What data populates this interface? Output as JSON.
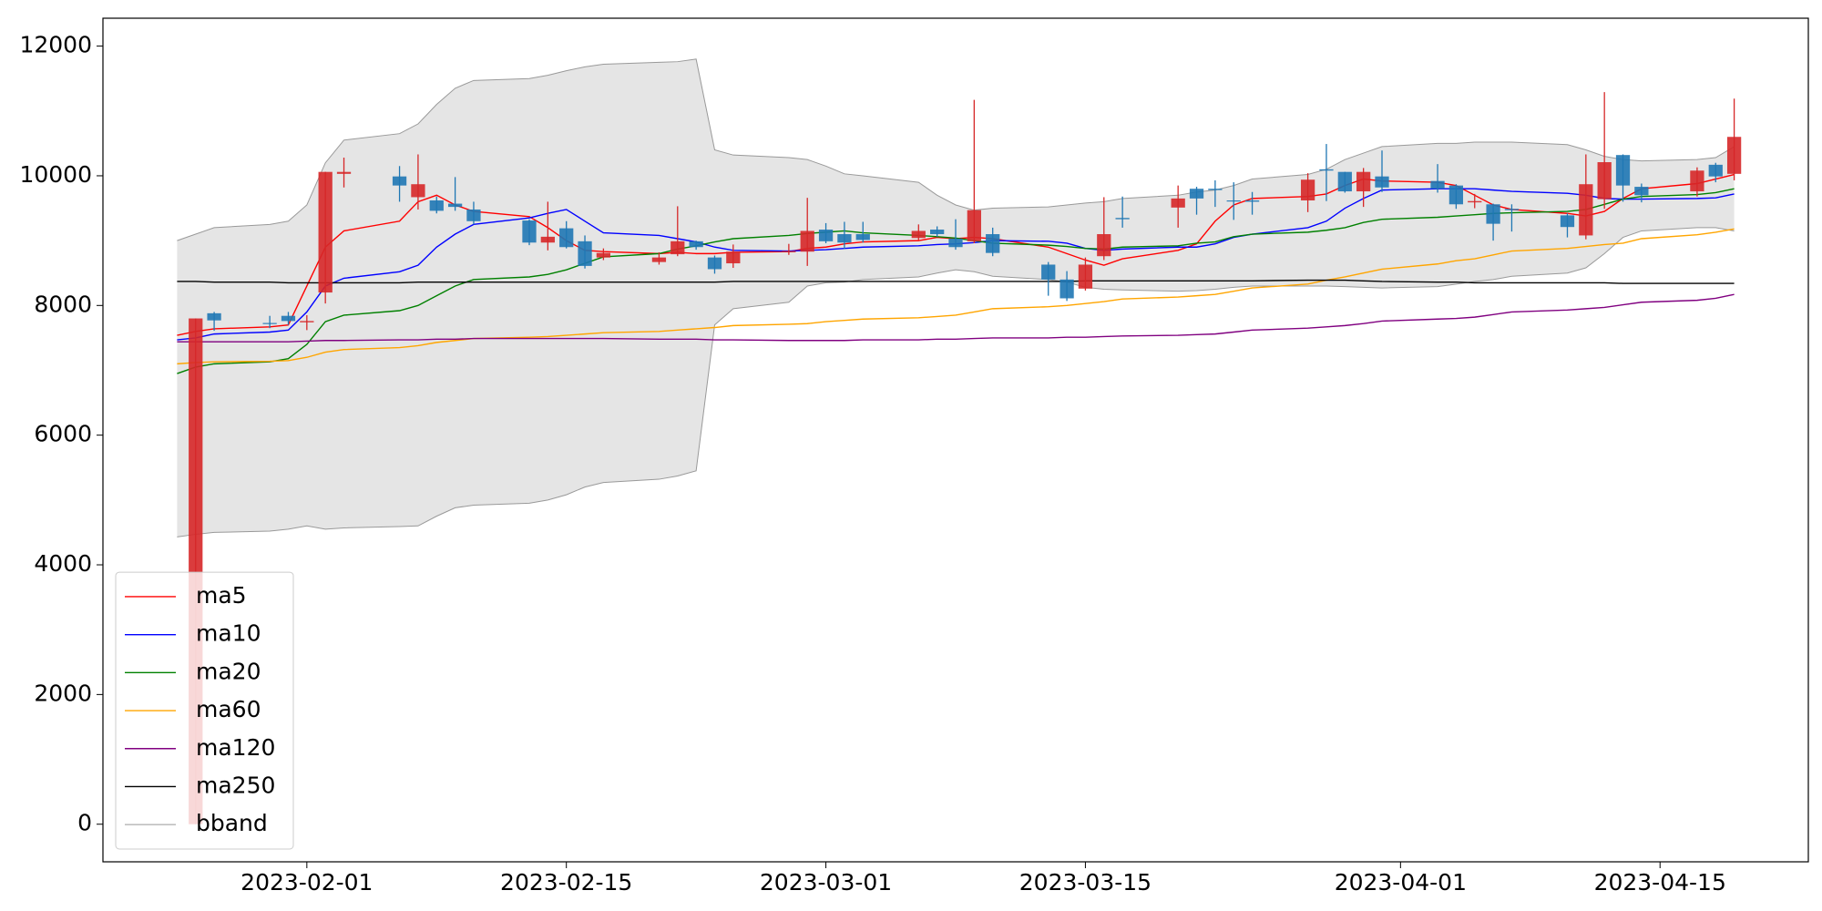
{
  "chart_data": {
    "type": "candlestick",
    "x": [
      "2023-01-25",
      "2023-01-26",
      "2023-01-27",
      "2023-01-30",
      "2023-01-31",
      "2023-02-01",
      "2023-02-02",
      "2023-02-03",
      "2023-02-06",
      "2023-02-07",
      "2023-02-08",
      "2023-02-09",
      "2023-02-10",
      "2023-02-13",
      "2023-02-14",
      "2023-02-15",
      "2023-02-16",
      "2023-02-17",
      "2023-02-20",
      "2023-02-21",
      "2023-02-22",
      "2023-02-23",
      "2023-02-24",
      "2023-02-27",
      "2023-02-28",
      "2023-03-01",
      "2023-03-02",
      "2023-03-03",
      "2023-03-06",
      "2023-03-07",
      "2023-03-08",
      "2023-03-09",
      "2023-03-10",
      "2023-03-13",
      "2023-03-14",
      "2023-03-15",
      "2023-03-16",
      "2023-03-17",
      "2023-03-20",
      "2023-03-21",
      "2023-03-22",
      "2023-03-23",
      "2023-03-24",
      "2023-03-27",
      "2023-03-28",
      "2023-03-29",
      "2023-03-30",
      "2023-03-31",
      "2023-04-03",
      "2023-04-04",
      "2023-04-05",
      "2023-04-06",
      "2023-04-07",
      "2023-04-10",
      "2023-04-11",
      "2023-04-12",
      "2023-04-13",
      "2023-04-14",
      "2023-04-17",
      "2023-04-18",
      "2023-04-19"
    ],
    "open": [
      null,
      0,
      7880,
      7730,
      7840,
      7740,
      8200,
      10030,
      9990,
      9670,
      9620,
      9570,
      9480,
      9310,
      8970,
      9190,
      8990,
      8740,
      8670,
      8790,
      8990,
      8740,
      8650,
      8820,
      8830,
      9170,
      9100,
      9100,
      9040,
      9170,
      9030,
      8990,
      9100,
      8630,
      8400,
      8260,
      8760,
      9350,
      9510,
      9800,
      9800,
      9620,
      9620,
      9620,
      10100,
      10060,
      9760,
      9990,
      9920,
      9850,
      9590,
      9560,
      9490,
      9390,
      9080,
      9640,
      10320,
      9830,
      9760,
      10170,
      10030
    ],
    "high": [
      null,
      7800,
      7900,
      7840,
      7900,
      7850,
      10060,
      10280,
      10150,
      10330,
      9680,
      9980,
      9600,
      9330,
      9600,
      9300,
      9080,
      8880,
      8820,
      9530,
      9000,
      8770,
      8940,
      8950,
      9660,
      9270,
      9290,
      9290,
      9250,
      9220,
      9330,
      11170,
      9200,
      8670,
      8530,
      8740,
      9670,
      9680,
      9850,
      9830,
      9930,
      9900,
      9750,
      10040,
      10490,
      10060,
      10120,
      10390,
      10180,
      9870,
      9720,
      9570,
      9560,
      9420,
      10330,
      11290,
      10330,
      9880,
      10130,
      10200,
      11190
    ],
    "low": [
      null,
      0,
      7610,
      7650,
      7700,
      7620,
      8030,
      9820,
      9600,
      9480,
      9420,
      9460,
      9250,
      8930,
      8850,
      8880,
      8570,
      8700,
      8630,
      8760,
      8860,
      8490,
      8580,
      8780,
      8610,
      8960,
      8870,
      8970,
      9010,
      9060,
      8860,
      8960,
      8760,
      8150,
      8070,
      8230,
      8700,
      9200,
      9200,
      9400,
      9520,
      9320,
      9400,
      9440,
      9610,
      9740,
      9520,
      9750,
      9740,
      9490,
      9500,
      9000,
      9140,
      9050,
      9020,
      9490,
      9600,
      9590,
      9680,
      9900,
      9930
    ],
    "close": [
      null,
      7800,
      7770,
      7720,
      7760,
      7760,
      10060,
      10060,
      9850,
      9870,
      9460,
      9520,
      9300,
      8970,
      9060,
      8900,
      8610,
      8810,
      8740,
      8990,
      8900,
      8560,
      8830,
      8840,
      9150,
      8990,
      8970,
      9010,
      9150,
      9100,
      8900,
      9470,
      8810,
      8400,
      8110,
      8630,
      9100,
      9330,
      9650,
      9650,
      9780,
      9610,
      9600,
      9940,
      10080,
      9760,
      10060,
      9820,
      9800,
      9560,
      9610,
      9260,
      9470,
      9210,
      9870,
      10210,
      9850,
      9700,
      10080,
      9990,
      10600
    ],
    "up_color": "#d62728",
    "down_color": "#1f77b4",
    "series": [
      {
        "name": "ma5",
        "color": "#ff0000",
        "values": [
          7540,
          7600,
          7640,
          7670,
          7700,
          8300,
          8900,
          9150,
          9300,
          9600,
          9700,
          9550,
          9450,
          9370,
          9200,
          9000,
          8850,
          8830,
          8800,
          8820,
          8800,
          8800,
          8820,
          8830,
          8880,
          8900,
          8950,
          8980,
          9000,
          9050,
          9030,
          9050,
          9030,
          8900,
          8800,
          8700,
          8620,
          8720,
          8850,
          8950,
          9300,
          9550,
          9650,
          9680,
          9720,
          9850,
          9950,
          9920,
          9900,
          9850,
          9700,
          9550,
          9480,
          9420,
          9380,
          9450,
          9650,
          9800,
          9880,
          9950,
          10020
        ]
      },
      {
        "name": "ma10",
        "color": "#0000ff",
        "values": [
          7470,
          7500,
          7560,
          7590,
          7620,
          7900,
          8300,
          8420,
          8520,
          8620,
          8900,
          9100,
          9250,
          9350,
          9420,
          9480,
          9300,
          9120,
          9080,
          9030,
          8980,
          8900,
          8850,
          8840,
          8850,
          8860,
          8880,
          8900,
          8920,
          8940,
          8950,
          8970,
          9000,
          8990,
          8960,
          8880,
          8850,
          8870,
          8900,
          8900,
          8950,
          9050,
          9100,
          9200,
          9300,
          9500,
          9650,
          9780,
          9800,
          9800,
          9800,
          9780,
          9760,
          9730,
          9700,
          9650,
          9640,
          9640,
          9650,
          9660,
          9720
        ]
      },
      {
        "name": "ma20",
        "color": "#008000",
        "values": [
          6950,
          7050,
          7100,
          7130,
          7180,
          7400,
          7750,
          7850,
          7920,
          8000,
          8150,
          8300,
          8400,
          8440,
          8480,
          8550,
          8650,
          8750,
          8800,
          8870,
          8920,
          8980,
          9030,
          9080,
          9110,
          9130,
          9150,
          9120,
          9080,
          9060,
          9040,
          9000,
          8960,
          8930,
          8910,
          8880,
          8870,
          8900,
          8920,
          8960,
          8980,
          9060,
          9100,
          9130,
          9160,
          9200,
          9280,
          9330,
          9360,
          9380,
          9400,
          9420,
          9430,
          9450,
          9480,
          9560,
          9640,
          9680,
          9710,
          9740,
          9800
        ]
      },
      {
        "name": "ma60",
        "color": "#ffa500",
        "values": [
          7100,
          7120,
          7130,
          7140,
          7150,
          7200,
          7280,
          7320,
          7350,
          7380,
          7430,
          7460,
          7490,
          7510,
          7520,
          7540,
          7560,
          7580,
          7600,
          7620,
          7640,
          7660,
          7690,
          7710,
          7720,
          7750,
          7770,
          7790,
          7810,
          7830,
          7850,
          7900,
          7950,
          7980,
          8000,
          8030,
          8060,
          8100,
          8130,
          8150,
          8170,
          8220,
          8270,
          8330,
          8390,
          8440,
          8500,
          8560,
          8640,
          8690,
          8720,
          8780,
          8840,
          8880,
          8910,
          8940,
          8960,
          9030,
          9090,
          9130,
          9180
        ]
      },
      {
        "name": "ma120",
        "color": "#800080",
        "values": [
          7440,
          7440,
          7440,
          7440,
          7440,
          7450,
          7460,
          7460,
          7470,
          7470,
          7480,
          7480,
          7490,
          7490,
          7490,
          7490,
          7490,
          7490,
          7480,
          7480,
          7480,
          7470,
          7470,
          7460,
          7460,
          7460,
          7460,
          7470,
          7470,
          7480,
          7480,
          7490,
          7500,
          7500,
          7510,
          7510,
          7520,
          7530,
          7540,
          7550,
          7560,
          7590,
          7620,
          7650,
          7670,
          7690,
          7720,
          7760,
          7790,
          7800,
          7820,
          7860,
          7900,
          7930,
          7950,
          7970,
          8010,
          8050,
          8080,
          8110,
          8170
        ]
      },
      {
        "name": "ma250",
        "color": "#000000",
        "values": [
          8370,
          8370,
          8360,
          8360,
          8350,
          8350,
          8350,
          8350,
          8350,
          8360,
          8360,
          8360,
          8360,
          8360,
          8360,
          8360,
          8360,
          8360,
          8360,
          8360,
          8360,
          8360,
          8370,
          8370,
          8370,
          8370,
          8370,
          8370,
          8370,
          8370,
          8370,
          8370,
          8370,
          8370,
          8370,
          8380,
          8380,
          8380,
          8380,
          8380,
          8380,
          8380,
          8380,
          8390,
          8390,
          8390,
          8380,
          8370,
          8360,
          8360,
          8350,
          8350,
          8350,
          8350,
          8350,
          8350,
          8340,
          8340,
          8340,
          8340,
          8340
        ]
      }
    ],
    "band": {
      "name": "bband",
      "color": "#999999",
      "fill": "#e5e5e5",
      "upper": [
        9000,
        9100,
        9200,
        9250,
        9300,
        9550,
        10200,
        10550,
        10650,
        10800,
        11100,
        11350,
        11470,
        11500,
        11550,
        11620,
        11680,
        11720,
        11750,
        11760,
        11800,
        10400,
        10320,
        10280,
        10250,
        10150,
        10030,
        10000,
        9900,
        9700,
        9550,
        9470,
        9500,
        9520,
        9550,
        9580,
        9600,
        9650,
        9700,
        9750,
        9780,
        9850,
        9950,
        10020,
        10100,
        10250,
        10350,
        10450,
        10500,
        10500,
        10520,
        10520,
        10520,
        10480,
        10400,
        10300,
        10250,
        10230,
        10250,
        10280,
        10450
      ],
      "lower": [
        4430,
        4470,
        4500,
        4520,
        4550,
        4600,
        4550,
        4570,
        4590,
        4600,
        4750,
        4880,
        4920,
        4950,
        5000,
        5080,
        5200,
        5270,
        5320,
        5370,
        5450,
        7700,
        7950,
        8050,
        8300,
        8350,
        8360,
        8400,
        8440,
        8500,
        8550,
        8520,
        8450,
        8400,
        8360,
        8280,
        8250,
        8240,
        8220,
        8230,
        8250,
        8280,
        8300,
        8300,
        8300,
        8290,
        8280,
        8270,
        8290,
        8330,
        8370,
        8400,
        8450,
        8500,
        8580,
        8800,
        9050,
        9150,
        9200,
        9200,
        9150
      ]
    },
    "xlim": [
      "2023-01-21",
      "2023-04-23"
    ],
    "xticks": [
      "2023-02-01",
      "2023-02-15",
      "2023-03-01",
      "2023-03-15",
      "2023-04-01",
      "2023-04-15"
    ],
    "ylim": [
      -580,
      12430
    ],
    "yticks": [
      0,
      2000,
      4000,
      6000,
      8000,
      10000,
      12000
    ],
    "grid": false,
    "legend": "lower left"
  }
}
